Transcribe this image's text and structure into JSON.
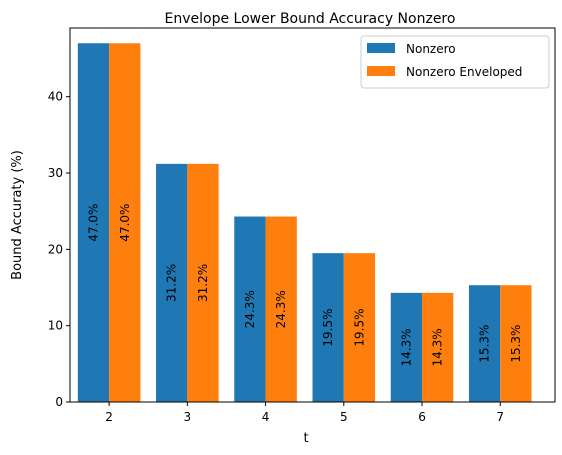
{
  "chart_data": {
    "type": "bar",
    "title": "Envelope Lower Bound Accuracy Nonzero",
    "xlabel": "t",
    "ylabel": "Bound Accuraty (%)",
    "categories": [
      "2",
      "3",
      "4",
      "5",
      "6",
      "7"
    ],
    "ylim": [
      0,
      49
    ],
    "yticks": [
      "0",
      "10",
      "20",
      "30",
      "40"
    ],
    "grid": false,
    "legend_position": "top-right",
    "series": [
      {
        "name": "Nonzero",
        "color": "#1f77b4",
        "values": [
          47.0,
          31.2,
          24.3,
          19.5,
          14.3,
          15.3
        ],
        "labels": [
          "47.0%",
          "31.2%",
          "24.3%",
          "19.5%",
          "14.3%",
          "15.3%"
        ]
      },
      {
        "name": "Nonzero Enveloped",
        "color": "#ff7f0e",
        "values": [
          47.0,
          31.2,
          24.3,
          19.5,
          14.3,
          15.3
        ],
        "labels": [
          "47.0%",
          "31.2%",
          "24.3%",
          "19.5%",
          "14.3%",
          "15.3%"
        ]
      }
    ]
  }
}
